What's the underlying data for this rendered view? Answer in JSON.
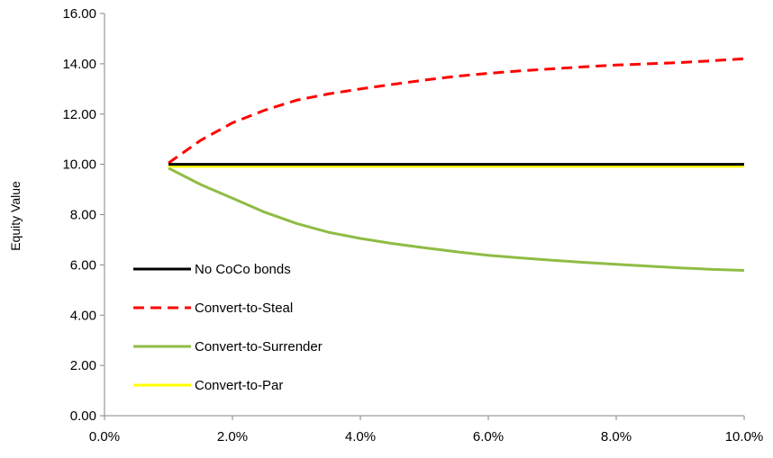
{
  "chart_data": {
    "type": "line",
    "title": "",
    "xlabel": "",
    "ylabel": "Equity Value",
    "xlim": [
      0.0,
      10.0
    ],
    "ylim": [
      0,
      16
    ],
    "x_ticks": [
      0,
      2,
      4,
      6,
      8,
      10
    ],
    "x_tick_labels": [
      "0.0%",
      "2.0%",
      "4.0%",
      "6.0%",
      "8.0%",
      "10.0%"
    ],
    "y_ticks": [
      0,
      2,
      4,
      6,
      8,
      10,
      12,
      14,
      16
    ],
    "y_tick_labels": [
      "0.00",
      "2.00",
      "4.00",
      "6.00",
      "8.00",
      "10.00",
      "12.00",
      "14.00",
      "16.00"
    ],
    "grid": false,
    "legend_position": "bottom-left",
    "x": [
      1,
      1.5,
      2,
      2.5,
      3,
      3.5,
      4,
      4.5,
      5,
      5.5,
      6,
      6.5,
      7,
      7.5,
      8,
      8.5,
      9,
      9.5,
      10
    ],
    "series": [
      {
        "name": "No CoCo bonds",
        "color": "#000000",
        "dash": "solid",
        "values": [
          10,
          10,
          10,
          10,
          10,
          10,
          10,
          10,
          10,
          10,
          10,
          10,
          10,
          10,
          10,
          10,
          10,
          10,
          10
        ]
      },
      {
        "name": "Convert-to-Steal",
        "color": "#ff0000",
        "dash": "dashed",
        "values": [
          10.05,
          10.95,
          11.65,
          12.15,
          12.55,
          12.8,
          13.0,
          13.18,
          13.35,
          13.5,
          13.62,
          13.72,
          13.8,
          13.88,
          13.95,
          14.0,
          14.05,
          14.12,
          14.2
        ]
      },
      {
        "name": "Convert-to-Surrender",
        "color": "#8fbc45",
        "dash": "solid",
        "values": [
          9.85,
          9.2,
          8.65,
          8.1,
          7.65,
          7.3,
          7.05,
          6.85,
          6.68,
          6.52,
          6.38,
          6.28,
          6.18,
          6.1,
          6.02,
          5.95,
          5.88,
          5.82,
          5.78
        ]
      },
      {
        "name": "Convert-to-Par",
        "color": "#ffff00",
        "dash": "solid",
        "values": [
          9.92,
          9.92,
          9.92,
          9.92,
          9.92,
          9.92,
          9.92,
          9.92,
          9.92,
          9.92,
          9.92,
          9.92,
          9.92,
          9.92,
          9.92,
          9.92,
          9.92,
          9.92,
          9.92
        ]
      }
    ]
  }
}
